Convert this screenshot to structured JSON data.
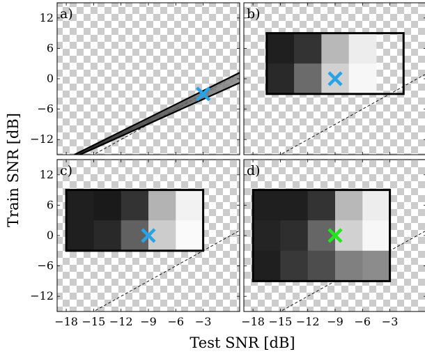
{
  "chart_data": {
    "type": "heatmap",
    "xlabel": "Test SNR [dB]",
    "ylabel": "Train SNR [dB]",
    "xlim": [
      -19,
      1
    ],
    "ylim": [
      -15,
      15
    ],
    "x_ticks": [
      -18,
      -15,
      -12,
      -9,
      -6,
      -3
    ],
    "y_ticks": [
      12,
      6,
      0,
      -6,
      -12
    ],
    "tick_labels_x": [
      "−18",
      "−15",
      "−12",
      "−9",
      "−6",
      "−3"
    ],
    "tick_labels_y": [
      "12",
      "6",
      "0",
      "−6",
      "−12"
    ],
    "reference_line": "dashed diagonal, Train SNR = Test SNR",
    "background": "checkerboard (transparent)",
    "panels": [
      {
        "label": "a)",
        "kind": "band",
        "band": {
          "x": [
            -16.5,
            1
          ],
          "y_low": [
            -15,
            -0.8
          ],
          "y_high": [
            -15,
            1.2
          ],
          "shading": [
            0.05,
            0.55
          ]
        },
        "marker": {
          "x": -3,
          "y": -3,
          "color": "#29a3e6"
        }
      },
      {
        "label": "b)",
        "kind": "grid",
        "x_centers": [
          -15,
          -12,
          -6,
          -3
        ],
        "y_centers": [
          6,
          0
        ],
        "x_edges": [
          -16.5,
          -13.5,
          -10.5,
          -7.5,
          -4.5,
          -1.5
        ],
        "y_edges": [
          9,
          3,
          -3
        ],
        "values": [
          [
            0.12,
            0.2,
            0.72,
            0.93
          ],
          [
            0.16,
            0.42,
            0.82,
            0.97
          ]
        ],
        "marker": {
          "x": -9,
          "y": 0,
          "color": "#29a3e6"
        }
      },
      {
        "label": "c)",
        "kind": "grid",
        "x_centers": [
          -16.5,
          -13.5,
          -10.5,
          -7.5,
          -4.5
        ],
        "y_centers": [
          6,
          0
        ],
        "x_edges": [
          -18,
          -15,
          -12,
          -9,
          -6,
          -3
        ],
        "y_edges": [
          9,
          3,
          -3
        ],
        "values": [
          [
            0.12,
            0.1,
            0.2,
            0.7,
            0.95
          ],
          [
            0.12,
            0.16,
            0.38,
            0.8,
            0.98
          ]
        ],
        "marker": {
          "x": -9,
          "y": 0,
          "color": "#29a3e6"
        }
      },
      {
        "label": "d)",
        "kind": "grid",
        "x_centers": [
          -16.5,
          -13.5,
          -10.5,
          -7.5,
          -4.5
        ],
        "y_centers": [
          6,
          0,
          -6
        ],
        "x_edges": [
          -18,
          -15,
          -12,
          -9,
          -6,
          -3
        ],
        "y_edges": [
          9,
          3,
          -3,
          -9
        ],
        "values": [
          [
            0.12,
            0.12,
            0.2,
            0.72,
            0.93
          ],
          [
            0.14,
            0.18,
            0.4,
            0.82,
            0.97
          ],
          [
            0.12,
            0.22,
            0.3,
            0.5,
            0.55
          ]
        ],
        "marker": {
          "x": -9,
          "y": 0,
          "color": "#22e61e"
        }
      }
    ]
  }
}
